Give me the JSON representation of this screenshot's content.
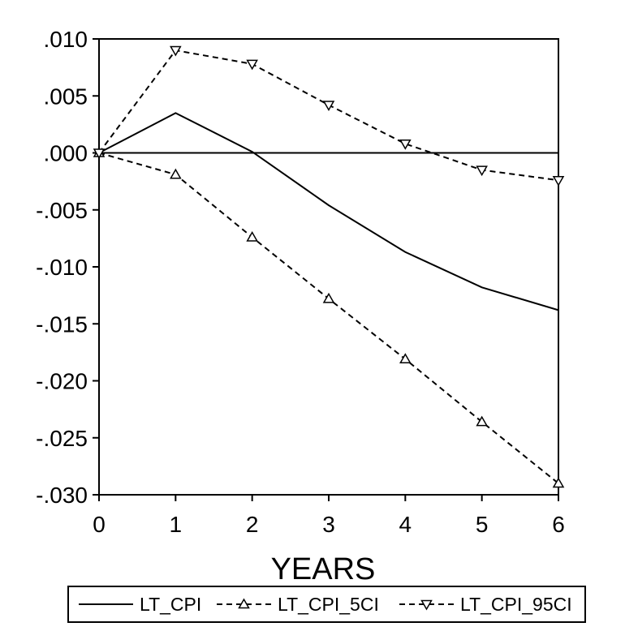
{
  "chart_data": {
    "type": "line",
    "xlabel": "YEARS",
    "ylabel": "",
    "title": "",
    "x": [
      0,
      1,
      2,
      3,
      4,
      5,
      6
    ],
    "xlim": [
      0,
      6
    ],
    "ylim": [
      -0.03,
      0.01
    ],
    "x_ticks": [
      "0",
      "1",
      "2",
      "3",
      "4",
      "5",
      "6"
    ],
    "y_ticks": [
      {
        "value": 0.01,
        "label": ".010"
      },
      {
        "value": 0.005,
        "label": ".005"
      },
      {
        "value": 0.0,
        "label": ".000"
      },
      {
        "value": -0.005,
        "label": "-.005"
      },
      {
        "value": -0.01,
        "label": "-.010"
      },
      {
        "value": -0.015,
        "label": "-.015"
      },
      {
        "value": -0.02,
        "label": "-.020"
      },
      {
        "value": -0.025,
        "label": "-.025"
      },
      {
        "value": -0.03,
        "label": "-.030"
      }
    ],
    "zero_line": true,
    "grid": false,
    "legend_position": "bottom",
    "series": [
      {
        "name": "LT_CPI",
        "style": "solid",
        "marker": "none",
        "values": [
          0.0,
          0.0035,
          0.0001,
          -0.0046,
          -0.0087,
          -0.0118,
          -0.0138
        ]
      },
      {
        "name": "LT_CPI_5CI",
        "style": "dashed",
        "marker": "triangle-up",
        "values": [
          0.0,
          -0.0019,
          -0.0074,
          -0.0128,
          -0.0181,
          -0.0236,
          -0.029
        ]
      },
      {
        "name": "LT_CPI_95CI",
        "style": "dashed",
        "marker": "triangle-down",
        "values": [
          0.0,
          0.009,
          0.0078,
          0.0042,
          0.0008,
          -0.0015,
          -0.0024
        ]
      }
    ],
    "colors": {
      "line": "#000000",
      "background": "#ffffff"
    }
  }
}
